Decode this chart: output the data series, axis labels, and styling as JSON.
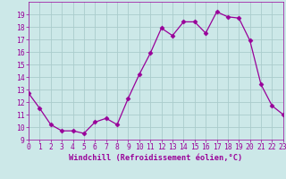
{
  "x": [
    0,
    1,
    2,
    3,
    4,
    5,
    6,
    7,
    8,
    9,
    10,
    11,
    12,
    13,
    14,
    15,
    16,
    17,
    18,
    19,
    20,
    21,
    22,
    23
  ],
  "y": [
    12.7,
    11.5,
    10.2,
    9.7,
    9.7,
    9.5,
    10.4,
    10.7,
    10.2,
    12.3,
    14.2,
    15.9,
    17.9,
    17.3,
    18.4,
    18.4,
    17.5,
    19.2,
    18.8,
    18.7,
    16.9,
    13.4,
    11.7,
    11.0
  ],
  "line_color": "#990099",
  "marker": "D",
  "marker_size": 2.5,
  "bg_color": "#cce8e8",
  "grid_color": "#aacccc",
  "xlabel": "Windchill (Refroidissement éolien,°C)",
  "xlabel_color": "#990099",
  "tick_color": "#990099",
  "ylim": [
    9,
    20
  ],
  "xlim": [
    0,
    23
  ],
  "yticks": [
    9,
    10,
    11,
    12,
    13,
    14,
    15,
    16,
    17,
    18,
    19
  ],
  "xticks": [
    0,
    1,
    2,
    3,
    4,
    5,
    6,
    7,
    8,
    9,
    10,
    11,
    12,
    13,
    14,
    15,
    16,
    17,
    18,
    19,
    20,
    21,
    22,
    23
  ],
  "label_fontsize": 6.2,
  "tick_fontsize": 5.8
}
